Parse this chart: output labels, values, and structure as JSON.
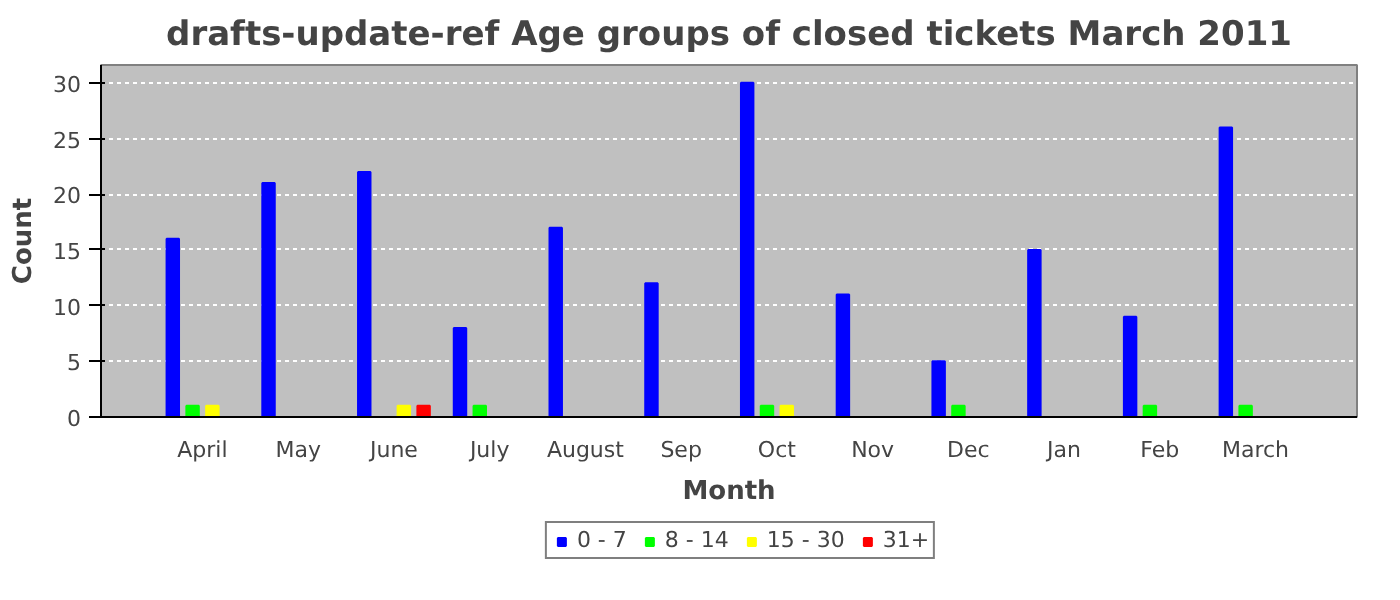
{
  "chart_data": {
    "type": "bar",
    "title": "drafts-update-ref Age groups of closed tickets March 2011",
    "xlabel": "Month",
    "ylabel": "Count",
    "categories": [
      "April",
      "May",
      "June",
      "July",
      "August",
      "Sep",
      "Oct",
      "Nov",
      "Dec",
      "Jan",
      "Feb",
      "March"
    ],
    "series": [
      {
        "name": "0 - 7",
        "color": "#0000ff",
        "values": [
          16,
          21,
          22,
          8,
          17,
          12,
          30,
          11,
          5,
          15,
          9,
          26
        ]
      },
      {
        "name": "8 - 14",
        "color": "#00ff00",
        "values": [
          1,
          0,
          0,
          1,
          0,
          0,
          1,
          0,
          1,
          0,
          1,
          1
        ]
      },
      {
        "name": "15 - 30",
        "color": "#ffff00",
        "values": [
          1,
          0,
          1,
          0,
          0,
          0,
          1,
          0,
          0,
          0,
          0,
          0
        ]
      },
      {
        "name": "31+",
        "color": "#ff0000",
        "values": [
          0,
          0,
          1,
          0,
          0,
          0,
          0,
          0,
          0,
          0,
          0,
          0
        ]
      }
    ],
    "ylim": [
      0,
      31.6
    ],
    "yticks": [
      0,
      5,
      10,
      15,
      20,
      25,
      30
    ],
    "grid": "y",
    "legend": "bottom"
  }
}
